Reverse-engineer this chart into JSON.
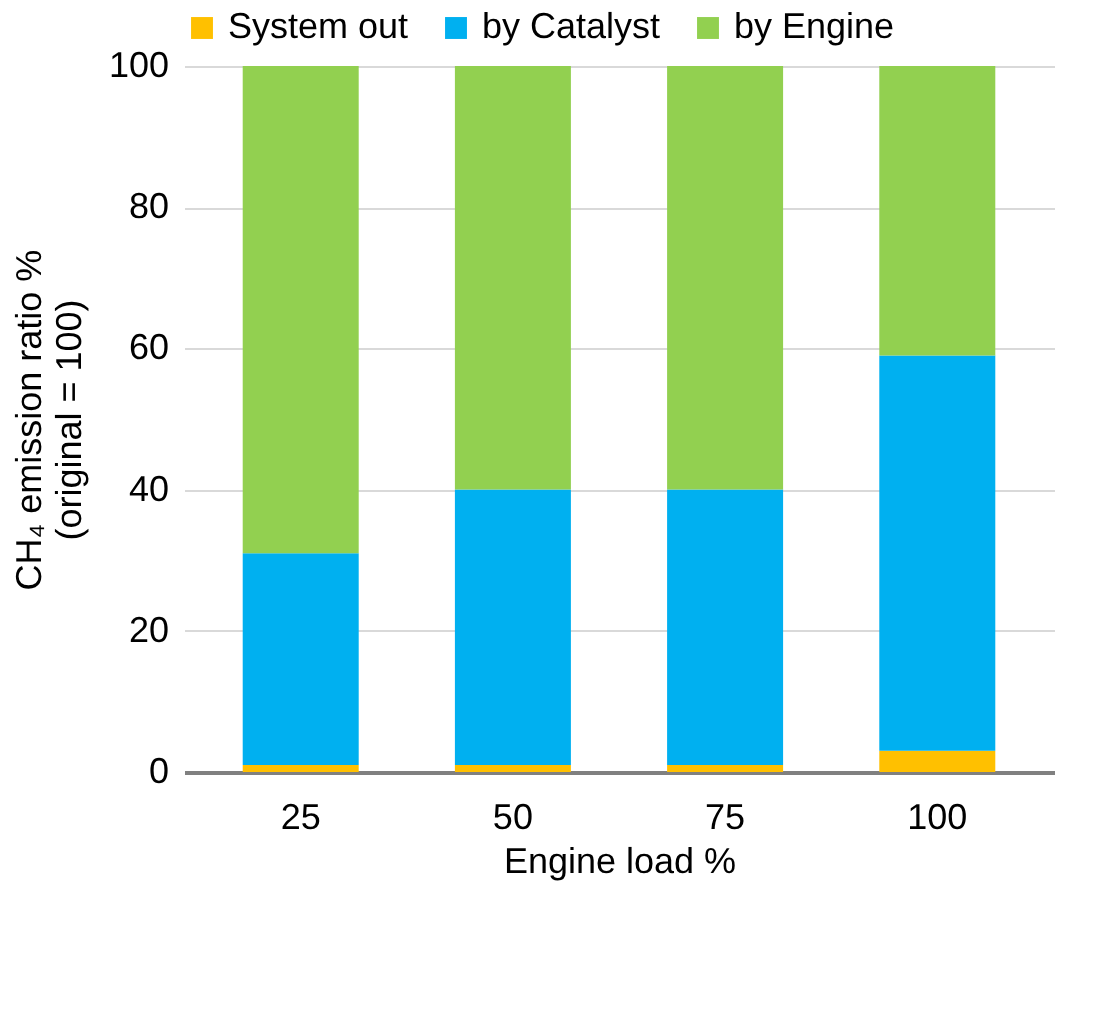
{
  "chart_data": {
    "type": "bar",
    "stacked": true,
    "xlabel": "Engine load    %",
    "ylabel": "CH₄ emission ratio    %\n(original = 100)",
    "categories": [
      "25",
      "50",
      "75",
      "100"
    ],
    "series": [
      {
        "name": "System out",
        "color": "#ffc000",
        "values": [
          1,
          1,
          1,
          3
        ]
      },
      {
        "name": "by Catalyst",
        "color": "#00b0f0",
        "values": [
          30,
          39,
          39,
          56
        ]
      },
      {
        "name": "by Engine",
        "color": "#92d050",
        "values": [
          69,
          60,
          60,
          41
        ]
      }
    ],
    "ylim": [
      0,
      100
    ],
    "yticks": [
      0,
      20,
      40,
      60,
      80,
      100
    ],
    "grid": "y",
    "legend": "top"
  }
}
